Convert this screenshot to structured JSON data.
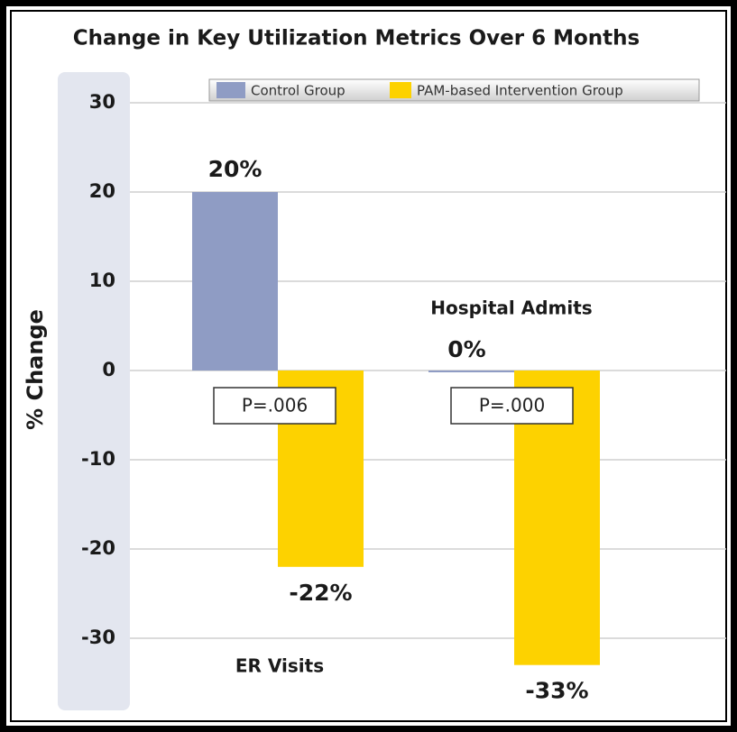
{
  "chart_data": {
    "type": "bar",
    "title": "Change in Key Utilization Metrics Over 6 Months",
    "y_label": "% Change",
    "categories": [
      "ER Visits",
      "Hospital Admits"
    ],
    "series": [
      {
        "name": "Control Group",
        "color": "#8f9cc4",
        "values": [
          20,
          0
        ],
        "value_labels": [
          "20%",
          "0%"
        ]
      },
      {
        "name": "PAM-based Intervention Group",
        "color": "#fdd200",
        "values": [
          -22,
          -33
        ],
        "value_labels": [
          "-22%",
          "-33%"
        ]
      }
    ],
    "annotations": [
      "P=.006",
      "P=.000"
    ],
    "ylim": [
      -38,
      33
    ],
    "yticks": [
      30,
      20,
      10,
      0,
      -10,
      -20,
      -30
    ],
    "grid": true,
    "legend": "top"
  }
}
